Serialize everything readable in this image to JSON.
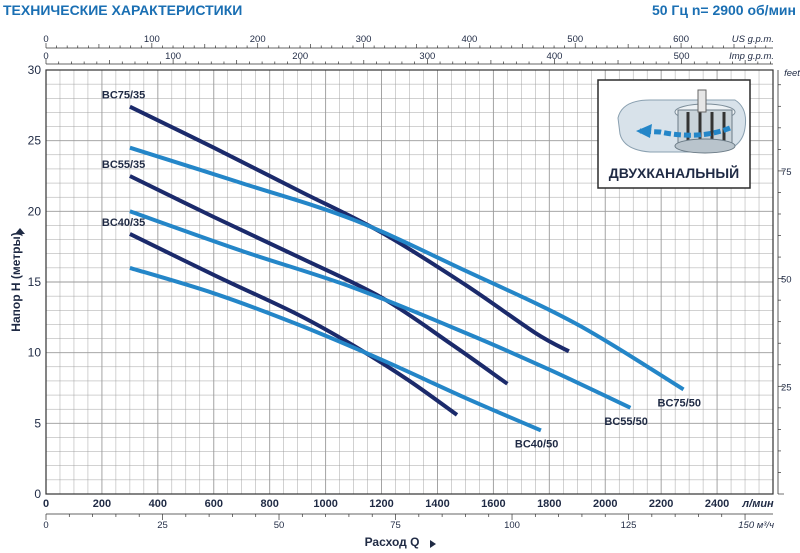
{
  "header": {
    "title": "ТЕХНИЧЕСКИЕ ХАРАКТЕРИСТИКИ",
    "subtitle": "50 Гц  n= 2900 об/мин"
  },
  "inset": {
    "label": "ДВУХКАНАЛЬНЫЙ"
  },
  "colors": {
    "grid": "#9a9a9a",
    "dark_curve": "#1b2a6b",
    "light_curve": "#2486c8",
    "header": "#1a6fb3"
  },
  "chart_data": {
    "type": "line",
    "x_unit": "л/мин",
    "xlabel": "Расход Q",
    "ylabel": "Напор H (метры)",
    "xlim": [
      0,
      2600
    ],
    "ylim": [
      0,
      30
    ],
    "grid": true,
    "x_ticks": [
      0,
      200,
      400,
      600,
      800,
      1000,
      1200,
      1400,
      1600,
      1800,
      2000,
      2200,
      2400
    ],
    "y_ticks": [
      0,
      5,
      10,
      15,
      20,
      25,
      30
    ],
    "secondary_axes": {
      "us_gpm": {
        "label": "US g.p.m.",
        "ticks": [
          "0",
          "100",
          "200",
          "300",
          "400",
          "500",
          "600"
        ],
        "values": [
          0,
          100,
          200,
          300,
          400,
          500,
          600
        ]
      },
      "imp_gpm": {
        "label": "Imp g.p.m.",
        "ticks": [
          "0",
          "100",
          "200",
          "300",
          "400",
          "500"
        ],
        "values": [
          0,
          100,
          200,
          300,
          400,
          500
        ]
      },
      "m3h": {
        "label": "150 м³/ч",
        "ticks": [
          "0",
          "25",
          "50",
          "75",
          "100",
          "125"
        ],
        "values": [
          0,
          25,
          50,
          75,
          100,
          125
        ]
      },
      "feet": {
        "label": "feet",
        "ticks": [
          "25",
          "50",
          "75"
        ],
        "values": [
          25,
          50,
          75
        ]
      }
    },
    "series": [
      {
        "name": "BC75/35",
        "label_side": "start",
        "color": "#1b2a6b",
        "points": [
          [
            300,
            27.4
          ],
          [
            600,
            24.5
          ],
          [
            900,
            21.5
          ],
          [
            1200,
            18.5
          ],
          [
            1500,
            14.8
          ],
          [
            1750,
            11.4
          ],
          [
            1870,
            10.1
          ]
        ]
      },
      {
        "name": "BC55/35",
        "label_side": "start",
        "color": "#1b2a6b",
        "points": [
          [
            300,
            22.5
          ],
          [
            600,
            19.6
          ],
          [
            900,
            16.8
          ],
          [
            1200,
            13.9
          ],
          [
            1450,
            10.6
          ],
          [
            1650,
            7.8
          ]
        ]
      },
      {
        "name": "BC40/35",
        "label_side": "start",
        "color": "#1b2a6b",
        "points": [
          [
            300,
            18.4
          ],
          [
            600,
            15.5
          ],
          [
            900,
            12.7
          ],
          [
            1100,
            10.5
          ],
          [
            1300,
            8.0
          ],
          [
            1470,
            5.6
          ]
        ]
      },
      {
        "name": "BC75/50",
        "label_side": "end",
        "color": "#2486c8",
        "points": [
          [
            300,
            24.5
          ],
          [
            700,
            22.0
          ],
          [
            1100,
            19.4
          ],
          [
            1500,
            15.8
          ],
          [
            1900,
            12.0
          ],
          [
            2280,
            7.4
          ]
        ]
      },
      {
        "name": "BC55/50",
        "label_side": "end",
        "color": "#2486c8",
        "points": [
          [
            300,
            20.0
          ],
          [
            700,
            17.2
          ],
          [
            1100,
            14.6
          ],
          [
            1500,
            11.4
          ],
          [
            1800,
            8.8
          ],
          [
            2090,
            6.1
          ]
        ]
      },
      {
        "name": "BC40/50",
        "label_side": "end",
        "color": "#2486c8",
        "points": [
          [
            300,
            16.0
          ],
          [
            600,
            14.2
          ],
          [
            900,
            12.0
          ],
          [
            1200,
            9.5
          ],
          [
            1500,
            6.8
          ],
          [
            1770,
            4.5
          ]
        ]
      }
    ]
  }
}
